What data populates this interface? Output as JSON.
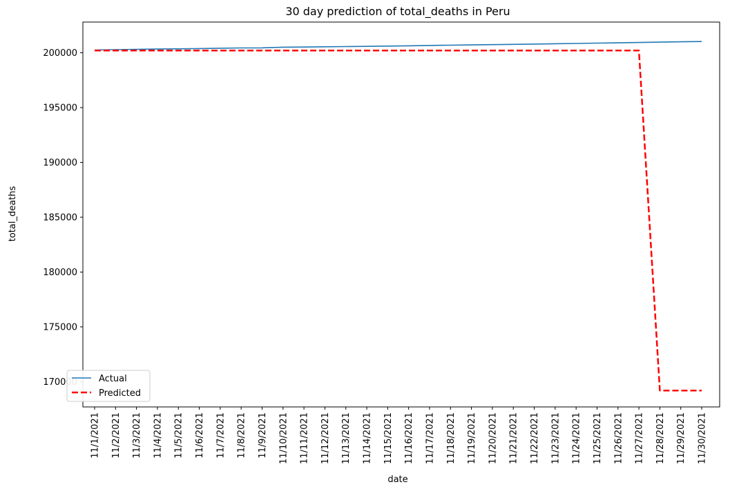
{
  "chart_data": {
    "type": "line",
    "title": "30 day prediction of total_deaths in Peru",
    "xlabel": "date",
    "ylabel": "total_deaths",
    "x": [
      "11/1/2021",
      "11/2/2021",
      "11/3/2021",
      "11/4/2021",
      "11/5/2021",
      "11/6/2021",
      "11/7/2021",
      "11/8/2021",
      "11/9/2021",
      "11/10/2021",
      "11/11/2021",
      "11/12/2021",
      "11/13/2021",
      "11/14/2021",
      "11/15/2021",
      "11/16/2021",
      "11/17/2021",
      "11/18/2021",
      "11/19/2021",
      "11/20/2021",
      "11/21/2021",
      "11/22/2021",
      "11/23/2021",
      "11/24/2021",
      "11/25/2021",
      "11/26/2021",
      "11/27/2021",
      "11/28/2021",
      "11/29/2021",
      "11/30/2021"
    ],
    "y_ticks": [
      170000,
      175000,
      180000,
      185000,
      190000,
      195000,
      200000
    ],
    "ylim": [
      167700,
      202800
    ],
    "grid": false,
    "legend_position": "lower-left",
    "series": [
      {
        "name": "Actual",
        "color": "#1f77b4",
        "style": "solid",
        "values": [
          200254,
          200282,
          200313,
          200338,
          200361,
          200387,
          200414,
          200440,
          200446,
          200508,
          200525,
          200546,
          200566,
          200588,
          200614,
          200636,
          200670,
          200693,
          200716,
          200743,
          200770,
          200795,
          200825,
          200853,
          200879,
          200907,
          200938,
          200969,
          201000,
          201029
        ]
      },
      {
        "name": "Predicted",
        "color": "#ff0000",
        "style": "dashed",
        "values": [
          200200,
          200200,
          200200,
          200200,
          200200,
          200200,
          200200,
          200200,
          200200,
          200200,
          200200,
          200200,
          200200,
          200200,
          200200,
          200200,
          200200,
          200200,
          200200,
          200200,
          200200,
          200200,
          200200,
          200200,
          200200,
          200200,
          200200,
          169200,
          169200,
          169200
        ]
      }
    ]
  }
}
